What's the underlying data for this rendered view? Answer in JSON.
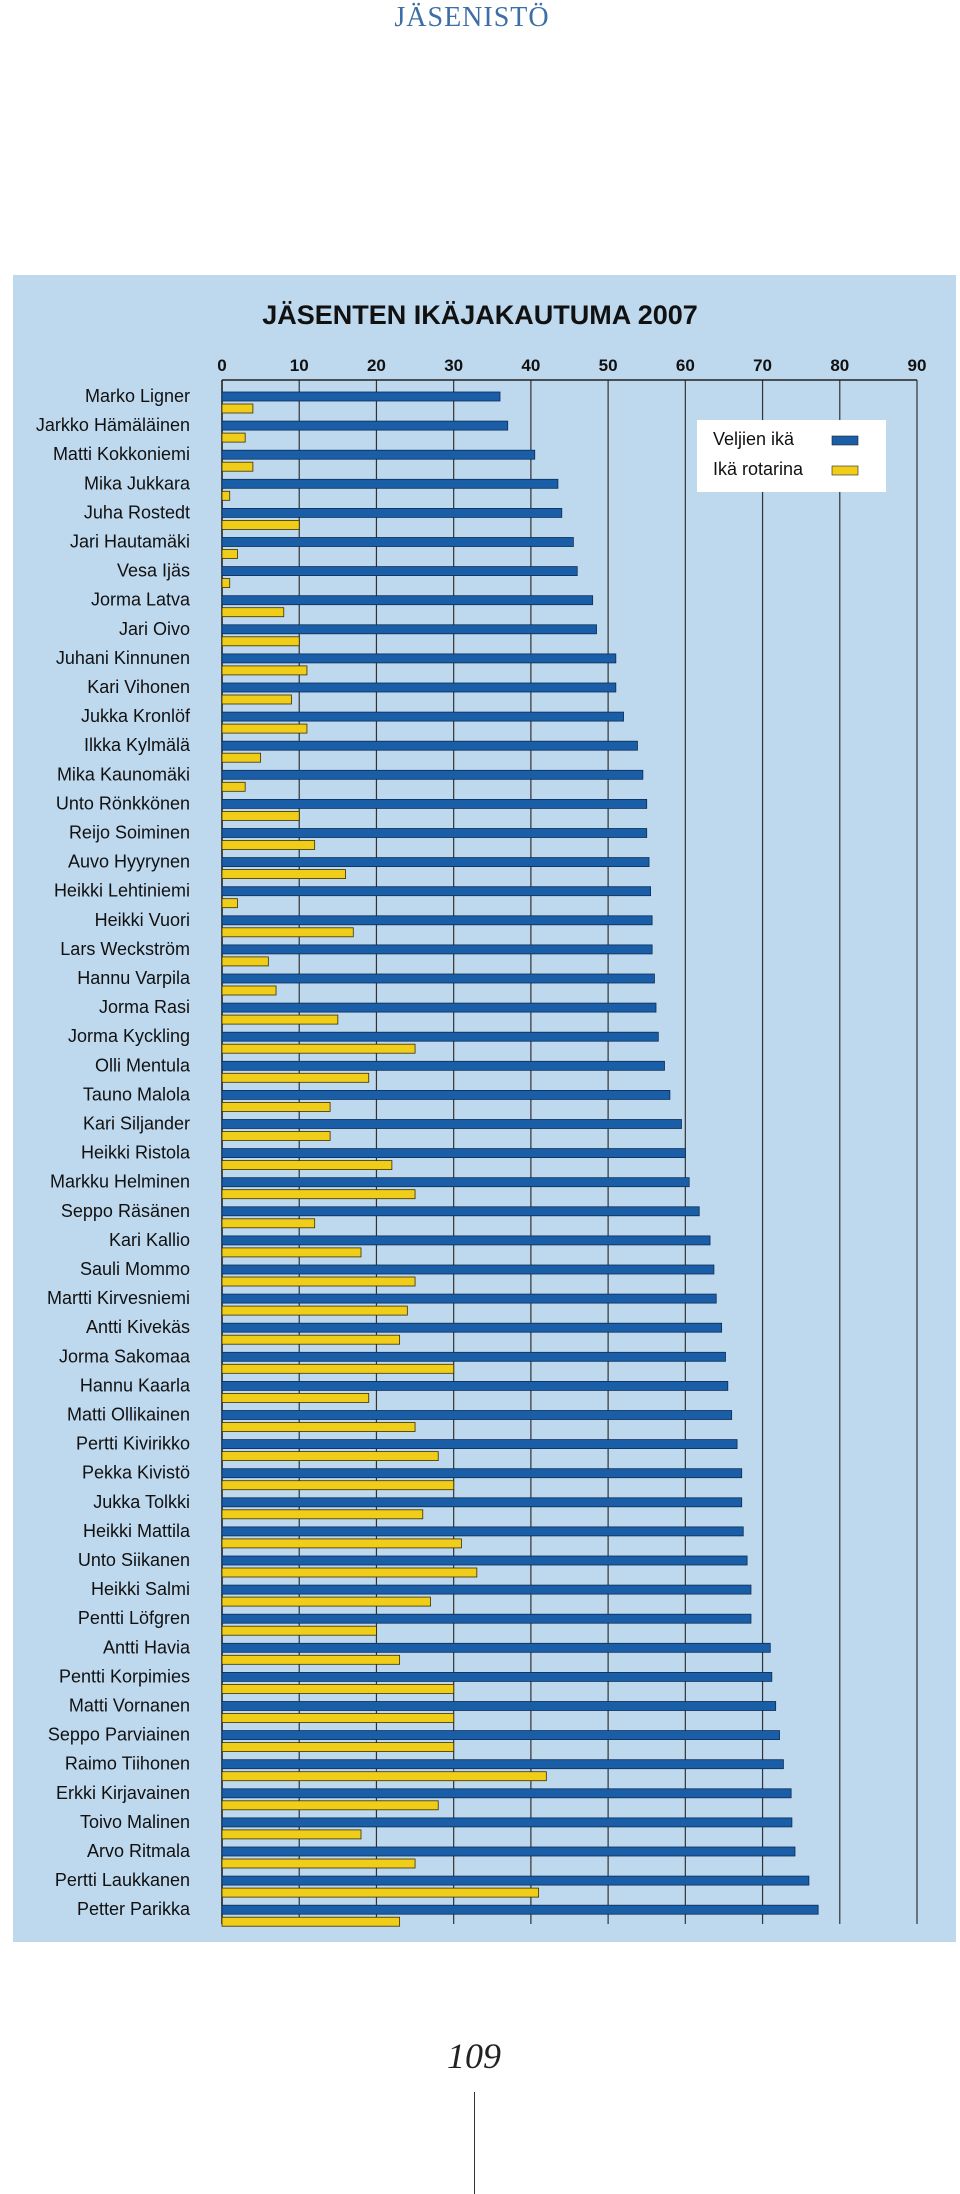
{
  "header": {
    "section": "JÄSENISTÖ"
  },
  "page_number": "109",
  "colors": {
    "background": "#bed8ee",
    "series_age": "#1b5ea8",
    "series_rotary": "#f0cd19",
    "grid": "#333333"
  },
  "chart_data": {
    "type": "bar",
    "orientation": "horizontal",
    "title": "JÄSENTEN IKÄJAKAUTUMA  2007",
    "xlim": [
      0,
      90
    ],
    "x_ticks": [
      "0",
      "10",
      "20",
      "30",
      "40",
      "50",
      "60",
      "70",
      "80",
      "90"
    ],
    "grid": true,
    "axis_position": "top",
    "legend_position": "top-right",
    "categories": [
      "Marko Ligner",
      "Jarkko Hämäläinen",
      "Matti Kokkoniemi",
      "Mika Jukkara",
      "Juha Rostedt",
      "Jari Hautamäki",
      "Vesa Ijäs",
      "Jorma Latva",
      "Jari Oivo",
      "Juhani Kinnunen",
      "Kari Vihonen",
      "Jukka Kronlöf",
      "Ilkka Kylmälä",
      "Mika Kaunomäki",
      "Unto Rönkkönen",
      "Reijo Soiminen",
      "Auvo Hyyrynen",
      "Heikki Lehtiniemi",
      "Heikki Vuori",
      "Lars Weckström",
      "Hannu Varpila",
      "Jorma Rasi",
      "Jorma Kyckling",
      "Olli Mentula",
      "Tauno Malola",
      "Kari Siljander",
      "Heikki Ristola",
      "Markku Helminen",
      "Seppo Räsänen",
      "Kari Kallio",
      "Sauli Mommo",
      "Martti Kirvesniemi",
      "Antti Kivekäs",
      "Jorma Sakomaa",
      "Hannu Kaarla",
      "Matti Ollikainen",
      "Pertti Kivirikko",
      "Pekka Kivistö",
      "Jukka Tolkki",
      "Heikki Mattila",
      "Unto Siikanen",
      "Heikki Salmi",
      "Pentti Löfgren",
      "Antti Havia",
      "Pentti Korpimies",
      "Matti Vornanen",
      "Seppo Parviainen",
      "Raimo Tiihonen",
      "Erkki Kirjavainen",
      "Toivo Malinen",
      "Arvo Ritmala",
      "Pertti Laukkanen",
      "Petter Parikka"
    ],
    "series": [
      {
        "name": "Veljien ikä",
        "color": "#1b5ea8",
        "values": [
          36,
          37,
          40.5,
          43.5,
          44,
          45.5,
          46,
          48,
          48.5,
          51,
          51,
          52,
          53.8,
          54.5,
          55,
          55,
          55.3,
          55.5,
          55.7,
          55.7,
          56,
          56.2,
          56.5,
          57.3,
          58,
          59.5,
          60,
          60.5,
          61.8,
          63.2,
          63.7,
          64,
          64.7,
          65.2,
          65.5,
          66,
          66.7,
          67.3,
          67.3,
          67.5,
          68,
          68.5,
          68.5,
          71,
          71.2,
          71.7,
          72.2,
          72.7,
          73.7,
          73.8,
          74.2,
          76,
          77.2
        ]
      },
      {
        "name": "Ikä rotarina",
        "color": "#f0cd19",
        "values": [
          4,
          3,
          4,
          1,
          10,
          2,
          1,
          8,
          10,
          11,
          9,
          11,
          5,
          3,
          10,
          12,
          16,
          2,
          17,
          6,
          7,
          15,
          25,
          19,
          14,
          14,
          22,
          25,
          12,
          18,
          25,
          24,
          23,
          30,
          19,
          25,
          28,
          30,
          26,
          31,
          33,
          27,
          20,
          23,
          30,
          30,
          30,
          42,
          28,
          18,
          25,
          41,
          23
        ]
      }
    ]
  }
}
